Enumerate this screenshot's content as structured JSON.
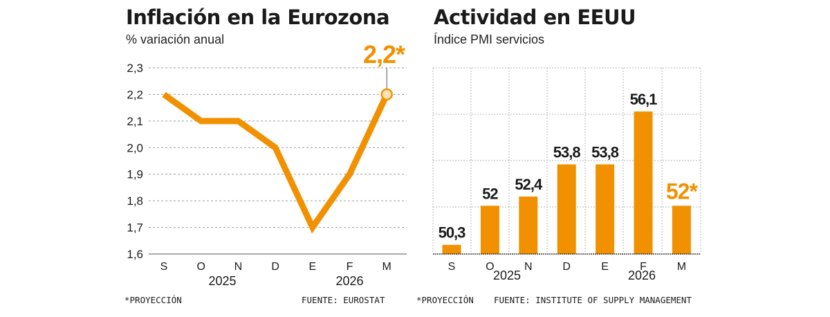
{
  "colors": {
    "accent": "#f29100",
    "text": "#1a1a1a",
    "grid": "#9a9a9a",
    "highlight_fill": "#fbe3b8"
  },
  "left": {
    "title": "Inflación en la Eurozona",
    "subtitle": "% variación anual",
    "footnote": "*PROYECCIÓN",
    "source": "FUENTE: EUROSTAT",
    "year_labels": [
      "2025",
      "2026"
    ],
    "highlight_label": "2,2*",
    "chart_data": {
      "type": "line",
      "title": "Inflación en la Eurozona",
      "subtitle": "% variación anual",
      "categories": [
        "S",
        "O",
        "N",
        "D",
        "E",
        "F",
        "M"
      ],
      "values": [
        2.2,
        2.1,
        2.1,
        2.0,
        1.7,
        1.9,
        2.2
      ],
      "projected_index": 6,
      "ylim": [
        1.6,
        2.3
      ],
      "yticks": [
        1.6,
        1.7,
        1.8,
        1.9,
        2.0,
        2.1,
        2.2,
        2.3
      ],
      "ytick_labels": [
        "1,6",
        "1,7",
        "1,8",
        "1,9",
        "2,0",
        "2,1",
        "2,2",
        "2,3"
      ],
      "grid": true
    }
  },
  "right": {
    "title": "Actividad en EEUU",
    "subtitle": "Índice PMI servicios",
    "footnote": "*PROYECCIÓN",
    "source": "FUENTE: INSTITUTE OF SUPPLY MANAGEMENT",
    "year_labels": [
      "2025",
      "2026"
    ],
    "chart_data": {
      "type": "bar",
      "title": "Actividad en EEUU",
      "subtitle": "Índice PMI servicios",
      "categories": [
        "S",
        "O",
        "N",
        "D",
        "E",
        "F",
        "M"
      ],
      "values": [
        50.3,
        52,
        52.4,
        53.8,
        53.8,
        56.1,
        52
      ],
      "value_labels": [
        "50,3",
        "52",
        "52,4",
        "53,8",
        "53,8",
        "56,1",
        "52*"
      ],
      "projected_index": 6,
      "ylim": [
        49.9,
        58
      ],
      "grid": true
    }
  }
}
